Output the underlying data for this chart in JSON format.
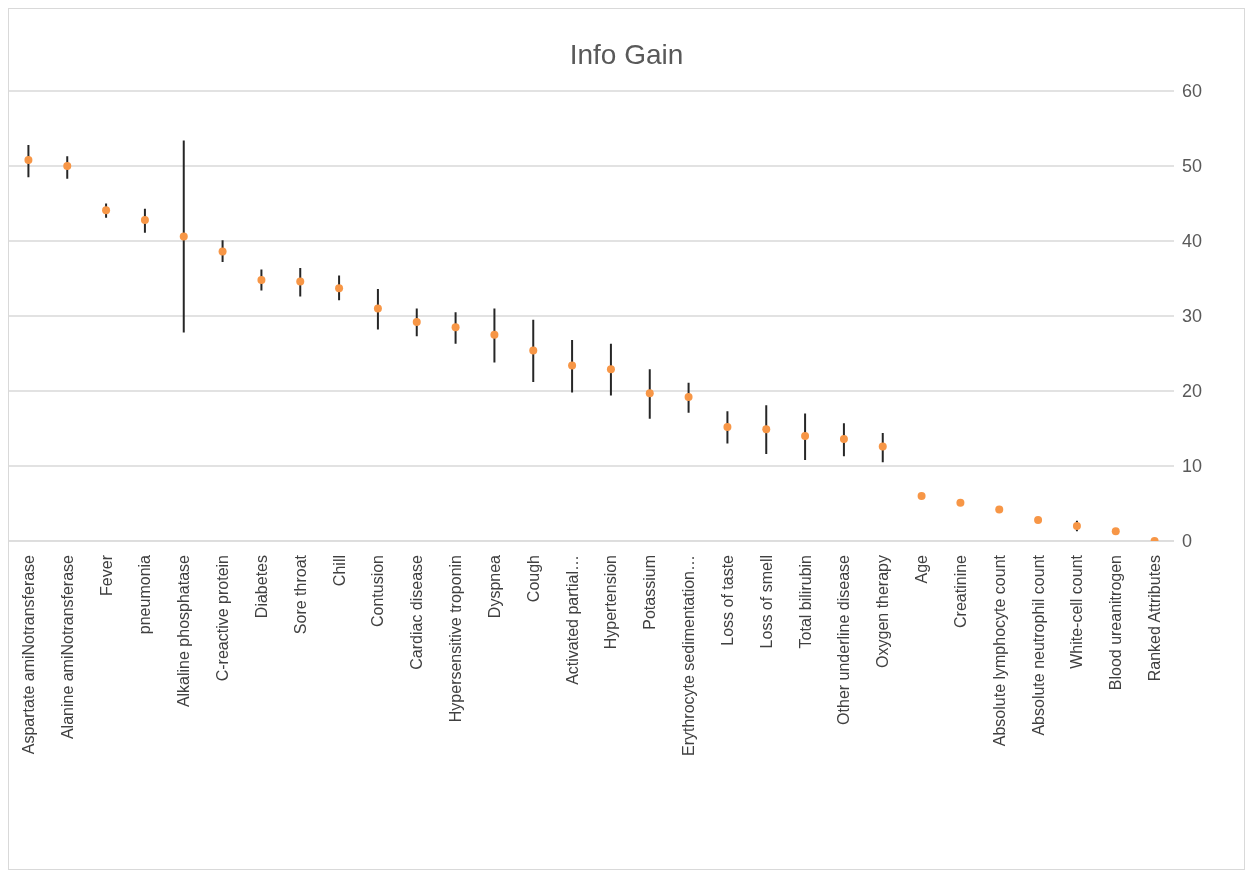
{
  "chart_data": {
    "type": "scatter",
    "title": "Info Gain",
    "categories": [
      "Aspartate amiNotransferase",
      "Alanine amiNotransferase",
      "Fever",
      "pneumonia",
      "Alkaline phosphatase",
      "C-reactive protein",
      "Diabetes",
      "Sore throat",
      "Chill",
      "Contusion",
      "Cardiac disease",
      "Hypersensitive troponin",
      "Dyspnea",
      "Cough",
      "Activated partial…",
      "Hypertension",
      "Potassium",
      "Erythrocyte sedimentation…",
      "Loss of taste",
      "Loss of smell",
      "Total bilirubin",
      "Other underline disease",
      "Oxygen therapy",
      "Age",
      "Creatinine",
      "Absolute lymphocyte count",
      "Absolute neutrophil count",
      "White-cell count",
      "Blood ureanitrogen",
      "Ranked Attributes"
    ],
    "values": [
      50.8,
      50.0,
      44.1,
      42.8,
      40.6,
      38.6,
      34.8,
      34.6,
      33.7,
      31.0,
      29.2,
      28.5,
      27.5,
      25.4,
      23.4,
      22.9,
      19.7,
      19.2,
      15.2,
      14.9,
      14.0,
      13.6,
      12.6,
      6.0,
      5.1,
      4.2,
      2.8,
      2.0,
      1.3,
      0
    ],
    "errors": [
      [
        48.5,
        52.8
      ],
      [
        48.3,
        51.3
      ],
      [
        43.1,
        45.0
      ],
      [
        41.1,
        44.3
      ],
      [
        27.8,
        53.4
      ],
      [
        37.2,
        40.1
      ],
      [
        33.4,
        36.2
      ],
      [
        32.6,
        36.4
      ],
      [
        32.1,
        35.4
      ],
      [
        28.2,
        33.6
      ],
      [
        27.3,
        31.0
      ],
      [
        26.3,
        30.5
      ],
      [
        23.8,
        31.0
      ],
      [
        21.2,
        29.5
      ],
      [
        19.8,
        26.8
      ],
      [
        19.4,
        26.3
      ],
      [
        16.3,
        22.9
      ],
      [
        17.1,
        21.1
      ],
      [
        13.0,
        17.3
      ],
      [
        11.6,
        18.1
      ],
      [
        10.8,
        17.0
      ],
      [
        11.3,
        15.7
      ],
      [
        10.5,
        14.4
      ],
      null,
      null,
      null,
      null,
      [
        1.3,
        2.7
      ],
      null,
      null
    ],
    "color": "#f79646",
    "marker": "circle",
    "ylim": [
      0,
      60
    ],
    "yticks": [
      0,
      10,
      20,
      30,
      40,
      50,
      60
    ],
    "grid": "y"
  }
}
